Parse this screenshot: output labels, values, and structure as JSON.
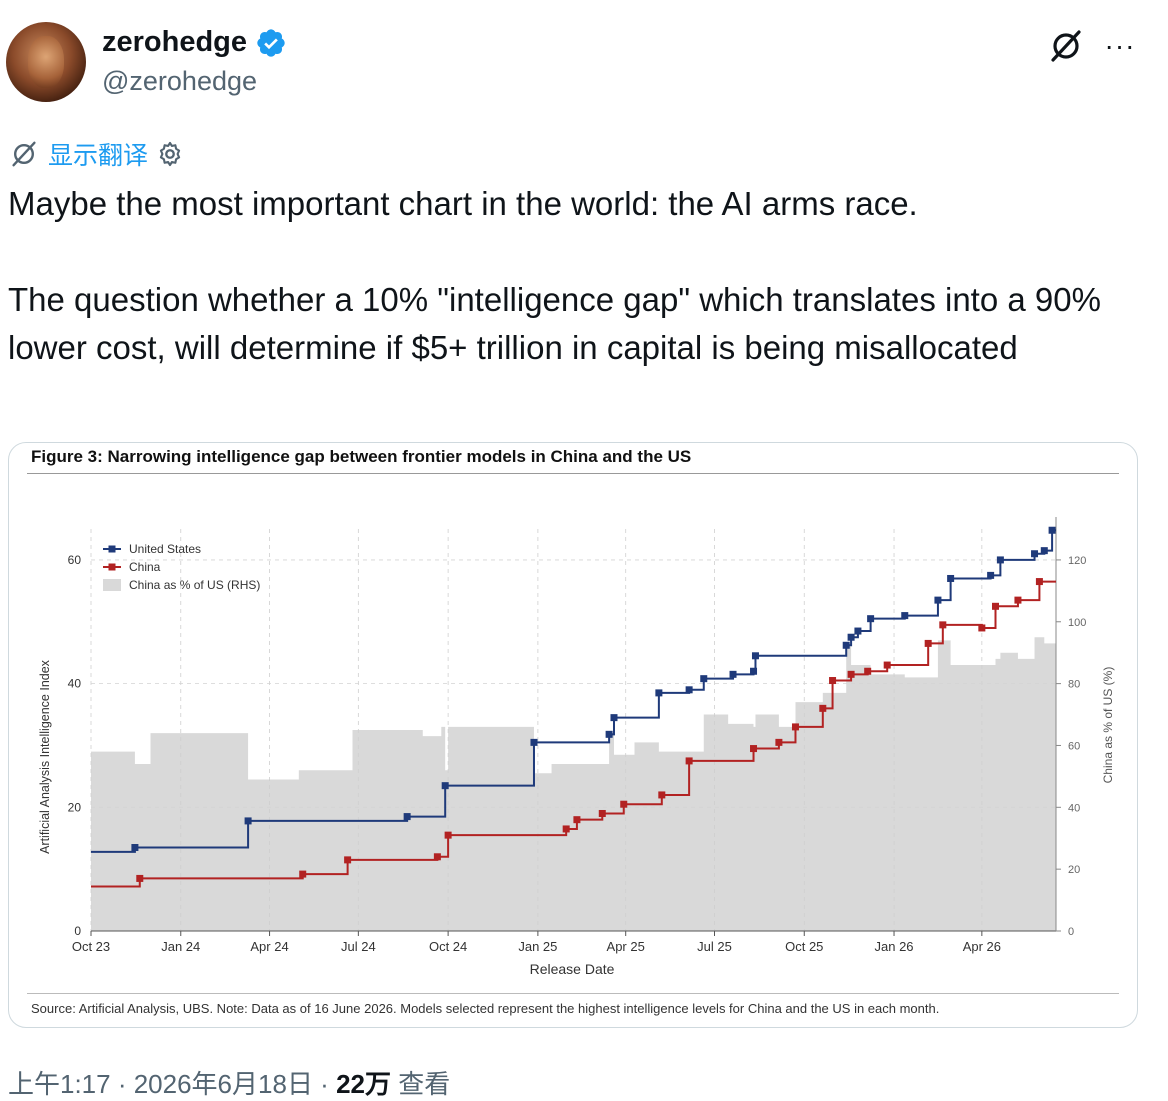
{
  "author": {
    "display_name": "zerohedge",
    "handle": "@zerohedge",
    "verified_color": "#1d9bf0"
  },
  "header_icons": {
    "grok": "grok-icon",
    "more": "more-icon",
    "more_glyph": "···"
  },
  "translate": {
    "label": "显示翻译",
    "icon_left": "grok-icon",
    "icon_right": "gear-icon"
  },
  "tweet": {
    "paragraph_1": "Maybe the most important chart in the world: the AI arms race.",
    "paragraph_2": "The question whether a 10% \"intelligence gap\" which translates into a 90% lower cost, will determine if $5+ trillion in capital is being misallocated"
  },
  "figure": {
    "title": "Figure 3: Narrowing intelligence gap between frontier models in China and the US",
    "source": "Source: Artificial Analysis, UBS. Note: Data as of 16 June 2026. Models selected represent the highest intelligence levels for China and the US in each month."
  },
  "chart_data": {
    "type": "line",
    "xlabel": "Release Date",
    "ylabel": "Artificial Analysis Intelligence Index",
    "y2label": "China as % of US (%)",
    "x_range": [
      "2023-10-01",
      "2026-06-16"
    ],
    "ylim": [
      0,
      65
    ],
    "y2lim": [
      0,
      130
    ],
    "x_ticks": [
      "Oct 23",
      "Jan 24",
      "Apr 24",
      "Jul 24",
      "Oct 24",
      "Jan 25",
      "Apr 25",
      "Jul 25",
      "Oct 25",
      "Jan 26",
      "Apr 26"
    ],
    "y_ticks": [
      0,
      20,
      40,
      60
    ],
    "y2_ticks": [
      0,
      20,
      40,
      60,
      80,
      100,
      120
    ],
    "grid": true,
    "legend": "top-left",
    "series": [
      {
        "name": "United States",
        "color": "#1f3a7a",
        "style": "step-with-markers",
        "axis": "left",
        "points": [
          [
            "2023-10-01",
            12.8
          ],
          [
            "2023-11-15",
            13.5
          ],
          [
            "2024-03-10",
            17.8
          ],
          [
            "2024-08-20",
            18.5
          ],
          [
            "2024-09-28",
            23.5
          ],
          [
            "2024-12-28",
            30.5
          ],
          [
            "2025-03-15",
            31.8
          ],
          [
            "2025-03-20",
            34.5
          ],
          [
            "2025-05-05",
            38.5
          ],
          [
            "2025-06-05",
            39.0
          ],
          [
            "2025-06-20",
            40.8
          ],
          [
            "2025-07-20",
            41.5
          ],
          [
            "2025-08-10",
            42.0
          ],
          [
            "2025-08-12",
            44.5
          ],
          [
            "2025-11-13",
            46.2
          ],
          [
            "2025-11-18",
            47.5
          ],
          [
            "2025-11-25",
            48.5
          ],
          [
            "2025-12-08",
            50.5
          ],
          [
            "2026-01-12",
            51.0
          ],
          [
            "2026-02-15",
            53.5
          ],
          [
            "2026-02-28",
            57.0
          ],
          [
            "2026-04-10",
            57.5
          ],
          [
            "2026-04-20",
            60.0
          ],
          [
            "2026-05-25",
            61.0
          ],
          [
            "2026-06-04",
            61.5
          ],
          [
            "2026-06-12",
            64.8
          ]
        ]
      },
      {
        "name": "China",
        "color": "#b22222",
        "style": "step-with-markers",
        "axis": "left",
        "points": [
          [
            "2023-10-01",
            7.2
          ],
          [
            "2023-11-20",
            8.5
          ],
          [
            "2024-05-05",
            9.2
          ],
          [
            "2024-06-20",
            11.5
          ],
          [
            "2024-09-20",
            12.0
          ],
          [
            "2024-10-01",
            15.5
          ],
          [
            "2025-01-30",
            16.5
          ],
          [
            "2025-02-10",
            18.0
          ],
          [
            "2025-03-08",
            19.0
          ],
          [
            "2025-03-30",
            20.5
          ],
          [
            "2025-05-08",
            22.0
          ],
          [
            "2025-06-05",
            27.5
          ],
          [
            "2025-08-10",
            29.5
          ],
          [
            "2025-09-05",
            30.5
          ],
          [
            "2025-09-22",
            33.0
          ],
          [
            "2025-10-20",
            36.0
          ],
          [
            "2025-10-30",
            40.5
          ],
          [
            "2025-11-18",
            41.5
          ],
          [
            "2025-12-05",
            42.0
          ],
          [
            "2025-12-25",
            43.0
          ],
          [
            "2026-02-05",
            46.5
          ],
          [
            "2026-02-20",
            49.5
          ],
          [
            "2026-04-01",
            49.0
          ],
          [
            "2026-04-15",
            52.5
          ],
          [
            "2026-05-08",
            53.5
          ],
          [
            "2026-05-30",
            56.5
          ]
        ]
      },
      {
        "name": "China as % of US (RHS)",
        "color": "#d9d9d9",
        "style": "filled-step",
        "axis": "right",
        "points": [
          [
            "2023-10-01",
            58
          ],
          [
            "2023-11-15",
            54
          ],
          [
            "2023-12-01",
            64
          ],
          [
            "2024-03-10",
            49
          ],
          [
            "2024-05-01",
            52
          ],
          [
            "2024-06-25",
            65
          ],
          [
            "2024-09-05",
            63
          ],
          [
            "2024-09-24",
            66
          ],
          [
            "2024-09-28",
            52
          ],
          [
            "2024-10-01",
            66
          ],
          [
            "2024-12-28",
            51
          ],
          [
            "2025-01-15",
            54
          ],
          [
            "2025-03-15",
            64
          ],
          [
            "2025-03-20",
            57
          ],
          [
            "2025-04-10",
            61
          ],
          [
            "2025-05-05",
            58
          ],
          [
            "2025-06-20",
            70
          ],
          [
            "2025-07-15",
            67
          ],
          [
            "2025-08-10",
            66
          ],
          [
            "2025-08-12",
            70
          ],
          [
            "2025-09-05",
            66
          ],
          [
            "2025-09-22",
            74
          ],
          [
            "2025-10-20",
            77
          ],
          [
            "2025-11-13",
            92
          ],
          [
            "2025-11-18",
            86
          ],
          [
            "2025-12-08",
            83
          ],
          [
            "2026-01-12",
            82
          ],
          [
            "2026-02-15",
            94
          ],
          [
            "2026-02-28",
            86
          ],
          [
            "2026-04-15",
            88
          ],
          [
            "2026-04-20",
            90
          ],
          [
            "2026-05-08",
            88
          ],
          [
            "2026-05-25",
            95
          ],
          [
            "2026-06-04",
            93
          ]
        ]
      }
    ]
  },
  "meta": {
    "time": "上午1:17",
    "separator": " · ",
    "date": "2026年6月18日",
    "views": "22万",
    "views_label": " 查看"
  }
}
